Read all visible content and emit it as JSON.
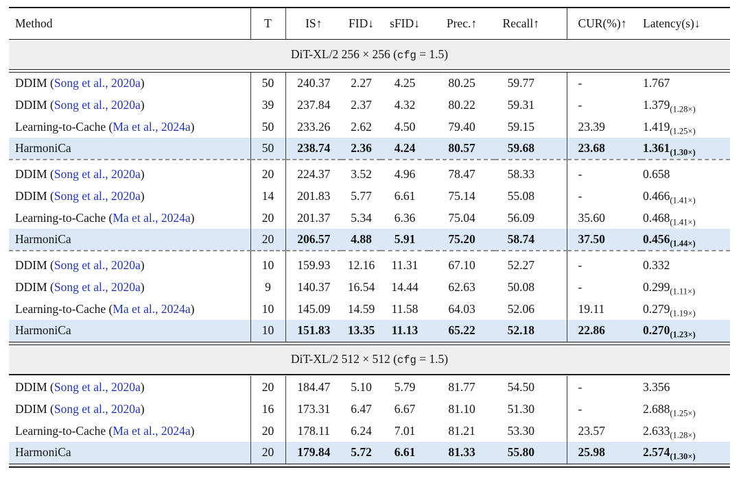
{
  "colors": {
    "citation_blue": "#2336ad",
    "highlight_row": "#dbe8f5",
    "section_band": "#efefed"
  },
  "punct": {
    "cite_prefix": " (",
    "cite_suffix": ")"
  },
  "table": {
    "columns": [
      {
        "key": "method",
        "label": "Method"
      },
      {
        "key": "t",
        "label": "T"
      },
      {
        "key": "is",
        "label": "IS↑"
      },
      {
        "key": "fid",
        "label": "FID↓"
      },
      {
        "key": "sfid",
        "label": "sFID↓"
      },
      {
        "key": "prec",
        "label": "Prec.↑"
      },
      {
        "key": "recall",
        "label": "Recall↑"
      },
      {
        "key": "cur",
        "label": "CUR(%)↑"
      },
      {
        "key": "latency",
        "label": "Latency(s)↓"
      }
    ],
    "sections": [
      {
        "title": {
          "prefix": "DiT-XL/2 256 × 256 (",
          "code": "cfg",
          "suffix": " = 1.5)"
        },
        "groups": [
          [
            {
              "method": "DDIM",
              "cite": "Song et al., 2020a",
              "t": "50",
              "vals": [
                "240.37",
                "2.27",
                "4.25",
                "80.25",
                "59.77"
              ],
              "cur": "-",
              "lat": "1.767",
              "sub": "",
              "best": false
            },
            {
              "method": "DDIM",
              "cite": "Song et al., 2020a",
              "t": "39",
              "vals": [
                "237.84",
                "2.37",
                "4.32",
                "80.22",
                "59.31"
              ],
              "cur": "-",
              "lat": "1.379",
              "sub": "(1.28×)",
              "best": false
            },
            {
              "method": "Learning-to-Cache",
              "cite": "Ma et al., 2024a",
              "t": "50",
              "vals": [
                "233.26",
                "2.62",
                "4.50",
                "79.40",
                "59.15"
              ],
              "cur": "23.39",
              "lat": "1.419",
              "sub": "(1.25×)",
              "best": false
            },
            {
              "method": "HarmoniCa",
              "cite": null,
              "t": "50",
              "vals": [
                "238.74",
                "2.36",
                "4.24",
                "80.57",
                "59.68"
              ],
              "cur": "23.68",
              "lat": "1.361",
              "sub": "(1.30×)",
              "best": true
            }
          ],
          [
            {
              "method": "DDIM",
              "cite": "Song et al., 2020a",
              "t": "20",
              "vals": [
                "224.37",
                "3.52",
                "4.96",
                "78.47",
                "58.33"
              ],
              "cur": "-",
              "lat": "0.658",
              "sub": "",
              "best": false
            },
            {
              "method": "DDIM",
              "cite": "Song et al., 2020a",
              "t": "14",
              "vals": [
                "201.83",
                "5.77",
                "6.61",
                "75.14",
                "55.08"
              ],
              "cur": "-",
              "lat": "0.466",
              "sub": "(1.41×)",
              "best": false
            },
            {
              "method": "Learning-to-Cache",
              "cite": "Ma et al., 2024a",
              "t": "20",
              "vals": [
                "201.37",
                "5.34",
                "6.36",
                "75.04",
                "56.09"
              ],
              "cur": "35.60",
              "lat": "0.468",
              "sub": "(1.41×)",
              "best": false
            },
            {
              "method": "HarmoniCa",
              "cite": null,
              "t": "20",
              "vals": [
                "206.57",
                "4.88",
                "5.91",
                "75.20",
                "58.74"
              ],
              "cur": "37.50",
              "lat": "0.456",
              "sub": "(1.44×)",
              "best": true
            }
          ],
          [
            {
              "method": "DDIM",
              "cite": "Song et al., 2020a",
              "t": "10",
              "vals": [
                "159.93",
                "12.16",
                "11.31",
                "67.10",
                "52.27"
              ],
              "cur": "-",
              "lat": "0.332",
              "sub": "",
              "best": false
            },
            {
              "method": "DDIM",
              "cite": "Song et al., 2020a",
              "t": "9",
              "vals": [
                "140.37",
                "16.54",
                "14.44",
                "62.63",
                "50.08"
              ],
              "cur": "-",
              "lat": "0.299",
              "sub": "(1.11×)",
              "best": false
            },
            {
              "method": "Learning-to-Cache",
              "cite": "Ma et al., 2024a",
              "t": "10",
              "vals": [
                "145.09",
                "14.59",
                "11.58",
                "64.03",
                "52.06"
              ],
              "cur": "19.11",
              "lat": "0.279",
              "sub": "(1.19×)",
              "best": false
            },
            {
              "method": "HarmoniCa",
              "cite": null,
              "t": "10",
              "vals": [
                "151.83",
                "13.35",
                "11.13",
                "65.22",
                "52.18"
              ],
              "cur": "22.86",
              "lat": "0.270",
              "sub": "(1.23×)",
              "best": true
            }
          ]
        ]
      },
      {
        "title": {
          "prefix": "DiT-XL/2 512 × 512 (",
          "code": "cfg",
          "suffix": " = 1.5)"
        },
        "groups": [
          [
            {
              "method": "DDIM",
              "cite": "Song et al., 2020a",
              "t": "20",
              "vals": [
                "184.47",
                "5.10",
                "5.79",
                "81.77",
                "54.50"
              ],
              "cur": "-",
              "lat": "3.356",
              "sub": "",
              "best": false
            },
            {
              "method": "DDIM",
              "cite": "Song et al., 2020a",
              "t": "16",
              "vals": [
                "173.31",
                "6.47",
                "6.67",
                "81.10",
                "51.30"
              ],
              "cur": "-",
              "lat": "2.688",
              "sub": "(1.25×)",
              "best": false
            },
            {
              "method": "Learning-to-Cache",
              "cite": "Ma et al., 2024a",
              "t": "20",
              "vals": [
                "178.11",
                "6.24",
                "7.01",
                "81.21",
                "53.30"
              ],
              "cur": "23.57",
              "lat": "2.633",
              "sub": "(1.28×)",
              "best": false
            },
            {
              "method": "HarmoniCa",
              "cite": null,
              "t": "20",
              "vals": [
                "179.84",
                "5.72",
                "6.61",
                "81.33",
                "55.80"
              ],
              "cur": "25.98",
              "lat": "2.574",
              "sub": "(1.30×)",
              "best": true
            }
          ]
        ]
      }
    ]
  }
}
